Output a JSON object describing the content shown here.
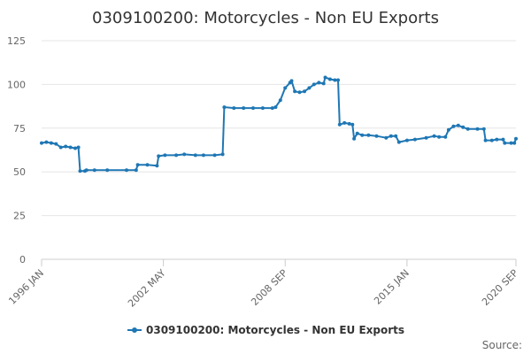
{
  "chart_data": {
    "type": "line",
    "title": "0309100200: Motorcycles - Non EU Exports",
    "xlabel": "",
    "ylabel": "",
    "ylim": [
      0,
      125
    ],
    "y_ticks": [
      0,
      25,
      50,
      75,
      100,
      125
    ],
    "x_range": [
      "1996-01",
      "2020-09"
    ],
    "x_tick_labels": [
      "1996 JAN",
      "2002 MAY",
      "2008 SEP",
      "2015 JAN",
      "2020 SEP"
    ],
    "x_tick_dates": [
      "1996-01",
      "2002-05",
      "2008-09",
      "2015-01",
      "2020-09"
    ],
    "grid": true,
    "legend_position": "bottom-center",
    "credit": "Source:",
    "series": [
      {
        "name": "0309100200: Motorcycles - Non EU Exports",
        "color": "#1f77b4",
        "points": [
          [
            "1996-01",
            66.5
          ],
          [
            "1996-04",
            67
          ],
          [
            "1996-07",
            66.5
          ],
          [
            "1996-10",
            66
          ],
          [
            "1997-01",
            64
          ],
          [
            "1997-04",
            64.5
          ],
          [
            "1997-07",
            64
          ],
          [
            "1997-10",
            63.5
          ],
          [
            "1997-12",
            64
          ],
          [
            "1998-01",
            50.5
          ],
          [
            "1998-04",
            50.5
          ],
          [
            "1998-05",
            51
          ],
          [
            "1998-10",
            51
          ],
          [
            "1999-06",
            51
          ],
          [
            "2000-06",
            51
          ],
          [
            "2000-12",
            51
          ],
          [
            "2001-01",
            54
          ],
          [
            "2001-07",
            54
          ],
          [
            "2002-01",
            53.5
          ],
          [
            "2002-02",
            59
          ],
          [
            "2002-06",
            59.5
          ],
          [
            "2003-01",
            59.5
          ],
          [
            "2003-06",
            60
          ],
          [
            "2004-01",
            59.5
          ],
          [
            "2004-06",
            59.5
          ],
          [
            "2005-01",
            59.5
          ],
          [
            "2005-06",
            60
          ],
          [
            "2005-07",
            87
          ],
          [
            "2006-01",
            86.5
          ],
          [
            "2006-07",
            86.5
          ],
          [
            "2007-01",
            86.5
          ],
          [
            "2007-07",
            86.5
          ],
          [
            "2008-01",
            86.5
          ],
          [
            "2008-03",
            87
          ],
          [
            "2008-06",
            91
          ],
          [
            "2008-09",
            98
          ],
          [
            "2008-12",
            101
          ],
          [
            "2009-01",
            102
          ],
          [
            "2009-03",
            96
          ],
          [
            "2009-06",
            95.5
          ],
          [
            "2009-09",
            96
          ],
          [
            "2009-12",
            98
          ],
          [
            "2010-03",
            100
          ],
          [
            "2010-06",
            101
          ],
          [
            "2010-09",
            100.5
          ],
          [
            "2010-10",
            104
          ],
          [
            "2011-01",
            103
          ],
          [
            "2011-04",
            102.5
          ],
          [
            "2011-06",
            102.5
          ],
          [
            "2011-07",
            77
          ],
          [
            "2011-10",
            78
          ],
          [
            "2012-01",
            77.5
          ],
          [
            "2012-03",
            77
          ],
          [
            "2012-04",
            69
          ],
          [
            "2012-06",
            72
          ],
          [
            "2012-09",
            71
          ],
          [
            "2013-01",
            71
          ],
          [
            "2013-06",
            70.5
          ],
          [
            "2013-12",
            69.5
          ],
          [
            "2014-03",
            70.5
          ],
          [
            "2014-06",
            70.5
          ],
          [
            "2014-08",
            67
          ],
          [
            "2015-01",
            68
          ],
          [
            "2015-06",
            68.5
          ],
          [
            "2016-01",
            69.5
          ],
          [
            "2016-06",
            70.5
          ],
          [
            "2016-09",
            70
          ],
          [
            "2017-01",
            70
          ],
          [
            "2017-03",
            74
          ],
          [
            "2017-06",
            76
          ],
          [
            "2017-09",
            76.5
          ],
          [
            "2017-12",
            75.5
          ],
          [
            "2018-03",
            74.5
          ],
          [
            "2018-09",
            74.5
          ],
          [
            "2019-01",
            74.5
          ],
          [
            "2019-02",
            68
          ],
          [
            "2019-06",
            68
          ],
          [
            "2019-09",
            68.5
          ],
          [
            "2020-01",
            68.5
          ],
          [
            "2020-02",
            66.5
          ],
          [
            "2020-06",
            66.5
          ],
          [
            "2020-08",
            66.5
          ],
          [
            "2020-09",
            69
          ]
        ]
      }
    ]
  }
}
